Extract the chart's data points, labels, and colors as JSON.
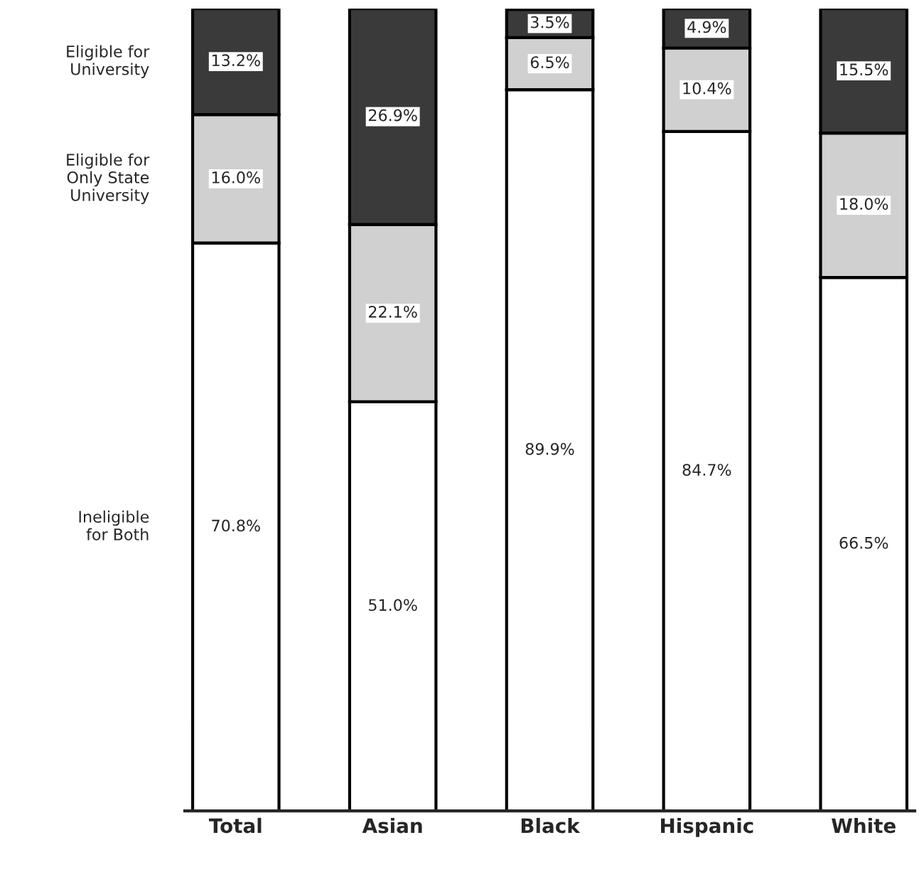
{
  "chart_data": {
    "type": "bar",
    "stacked": true,
    "legend": "left",
    "categories": [
      "Total",
      "Asian",
      "Black",
      "Hispanic",
      "White"
    ],
    "series": [
      {
        "name": "Ineligible\nfor Both",
        "color": "#ffffff",
        "values": [
          70.8,
          51.0,
          89.9,
          84.7,
          66.5
        ],
        "value_labels": [
          "70.8%",
          "51.0%",
          "89.9%",
          "84.7%",
          "66.5%"
        ]
      },
      {
        "name": "Eligible for\nOnly State\nUniversity",
        "color": "#d0d0d0",
        "values": [
          16.0,
          22.1,
          6.5,
          10.4,
          18.0
        ],
        "value_labels": [
          "16.0%",
          "22.1%",
          "6.5%",
          "10.4%",
          "18.0%"
        ]
      },
      {
        "name": "Eligible for\nUniversity",
        "color": "#3a3a3a",
        "values": [
          13.2,
          26.9,
          3.5,
          4.9,
          15.5
        ],
        "value_labels": [
          "13.2%",
          "26.9%",
          "3.5%",
          "4.9%",
          "15.5%"
        ]
      }
    ]
  }
}
